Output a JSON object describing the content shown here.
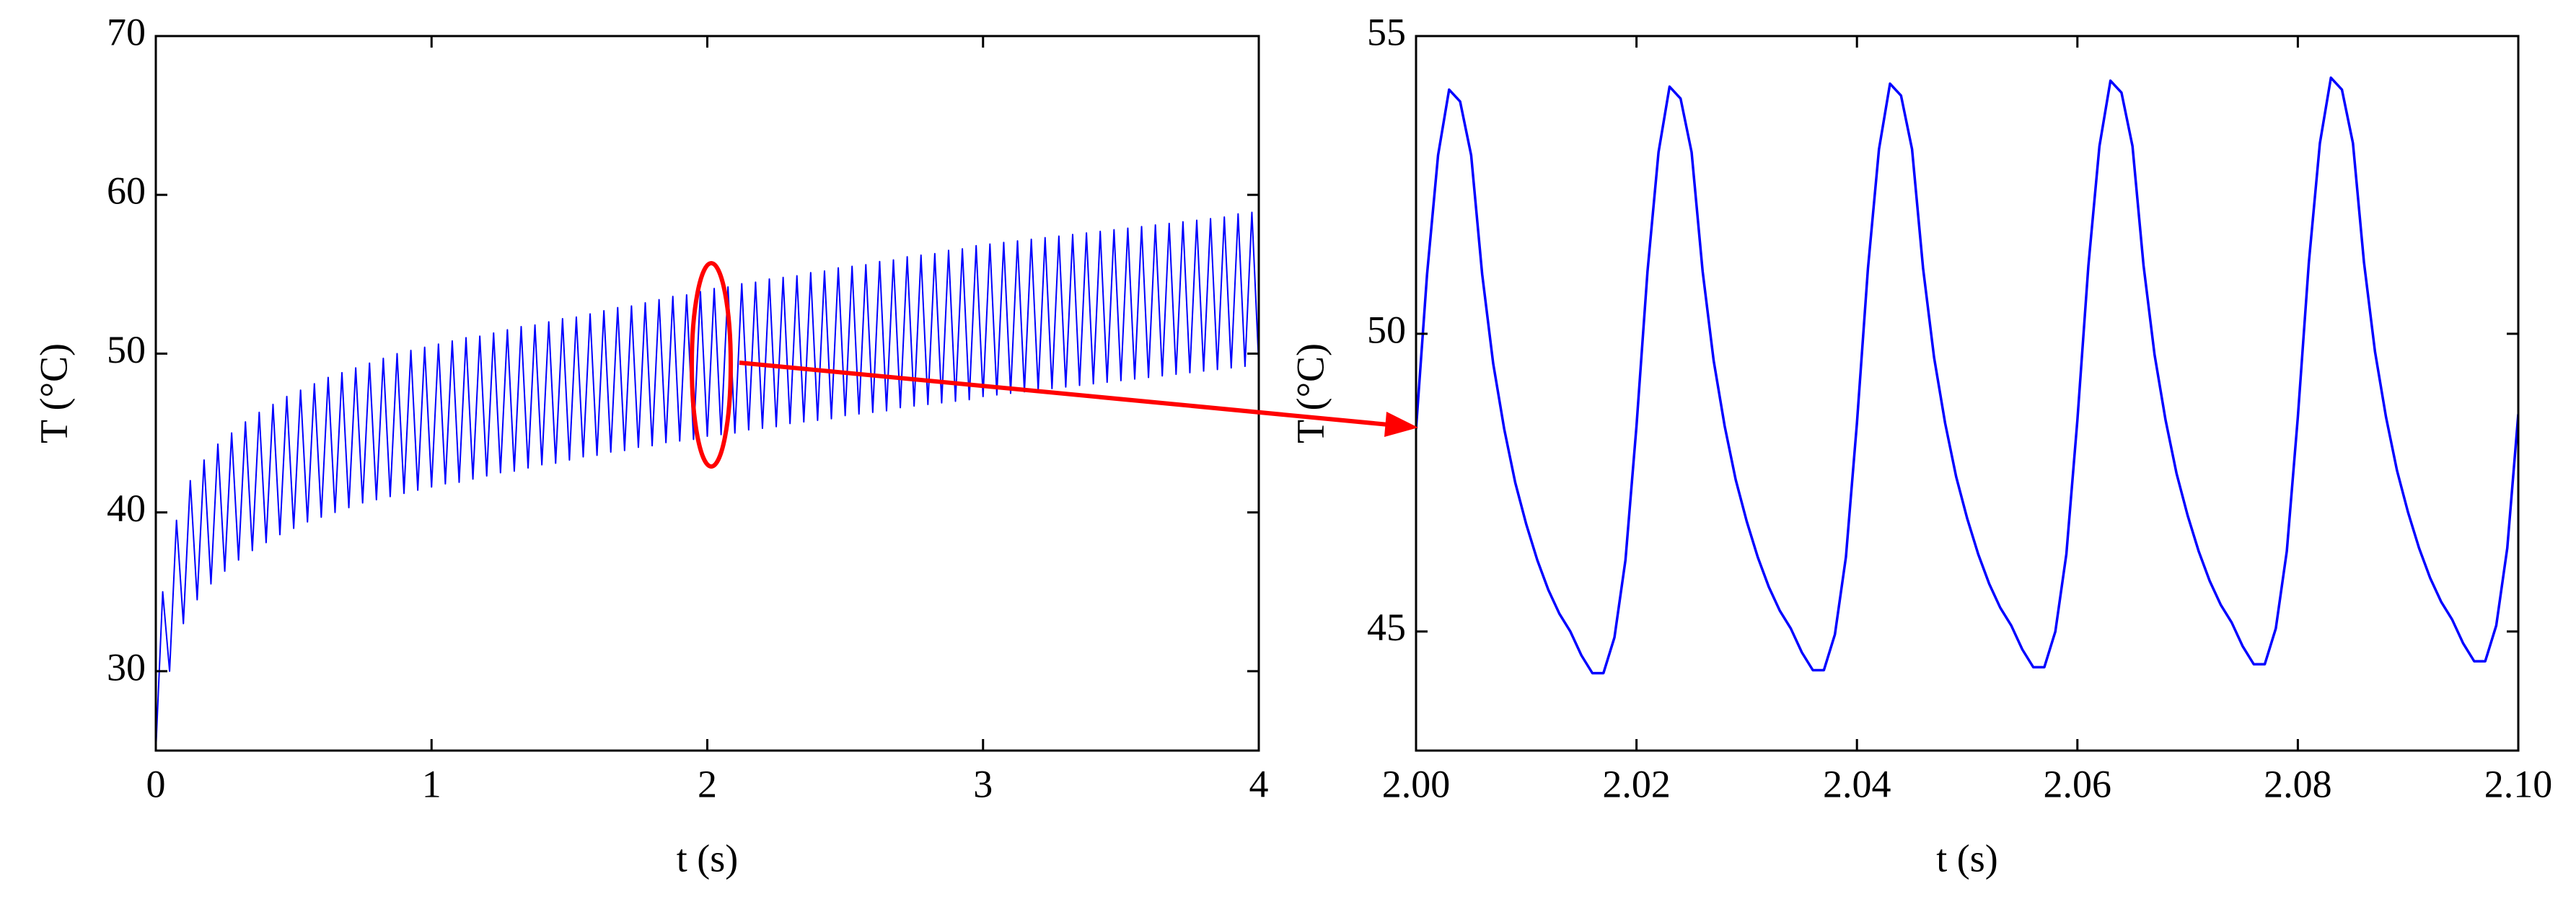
{
  "chart_data": [
    {
      "type": "line",
      "xlabel": "t (s)",
      "ylabel": "T (°C)",
      "color": "#0000ff",
      "xlim": [
        0,
        4
      ],
      "xticks": [
        0,
        1,
        2,
        3,
        4
      ],
      "ylim": [
        25,
        70
      ],
      "yticks": [
        30,
        40,
        50,
        60,
        70
      ],
      "x": [
        0,
        0.025,
        0.05,
        0.075,
        0.1,
        0.125,
        0.15,
        0.175,
        0.2,
        0.225,
        0.25,
        0.275,
        0.3,
        0.325,
        0.35,
        0.375,
        0.4,
        0.425,
        0.45,
        0.475,
        0.5,
        0.525,
        0.55,
        0.575,
        0.6,
        0.625,
        0.65,
        0.675,
        0.7,
        0.725,
        0.75,
        0.775,
        0.8,
        0.825,
        0.85,
        0.875,
        0.9,
        0.925,
        0.95,
        0.975,
        1,
        1.025,
        1.05,
        1.075,
        1.1,
        1.125,
        1.15,
        1.175,
        1.2,
        1.225,
        1.25,
        1.275,
        1.3,
        1.325,
        1.35,
        1.375,
        1.4,
        1.425,
        1.45,
        1.475,
        1.5,
        1.525,
        1.55,
        1.575,
        1.6,
        1.625,
        1.65,
        1.675,
        1.7,
        1.725,
        1.75,
        1.775,
        1.8,
        1.825,
        1.85,
        1.875,
        1.9,
        1.925,
        1.95,
        1.975,
        2,
        2.025,
        2.05,
        2.075,
        2.1,
        2.125,
        2.15,
        2.175,
        2.2,
        2.225,
        2.25,
        2.275,
        2.3,
        2.325,
        2.35,
        2.375,
        2.4,
        2.425,
        2.45,
        2.475,
        2.5,
        2.525,
        2.55,
        2.575,
        2.6,
        2.625,
        2.65,
        2.675,
        2.7,
        2.725,
        2.75,
        2.775,
        2.8,
        2.825,
        2.85,
        2.875,
        2.9,
        2.925,
        2.95,
        2.975,
        3,
        3.025,
        3.05,
        3.075,
        3.1,
        3.125,
        3.15,
        3.175,
        3.2,
        3.225,
        3.25,
        3.275,
        3.3,
        3.325,
        3.35,
        3.375,
        3.4,
        3.425,
        3.45,
        3.475,
        3.5,
        3.525,
        3.55,
        3.575,
        3.6,
        3.625,
        3.65,
        3.675,
        3.7,
        3.725,
        3.75,
        3.775,
        3.8,
        3.825,
        3.85,
        3.875,
        3.9,
        3.925,
        3.95,
        3.975,
        4
      ],
      "values": [
        25,
        35,
        30,
        39.5,
        33,
        42,
        34.5,
        43.3,
        35.5,
        44.3,
        36.3,
        45,
        37,
        45.7,
        37.6,
        46.3,
        38.1,
        46.8,
        38.6,
        47.3,
        39,
        47.7,
        39.4,
        48.1,
        39.7,
        48.5,
        40,
        48.8,
        40.3,
        49.1,
        40.6,
        49.4,
        40.8,
        49.7,
        41,
        50,
        41.2,
        50.2,
        41.4,
        50.4,
        41.6,
        50.6,
        41.8,
        50.8,
        41.9,
        51,
        42.1,
        51.1,
        42.3,
        51.3,
        42.5,
        51.5,
        42.6,
        51.7,
        42.8,
        51.8,
        43,
        52,
        43.1,
        52.2,
        43.3,
        52.3,
        43.5,
        52.5,
        43.6,
        52.7,
        43.8,
        52.9,
        43.9,
        53,
        44.1,
        53.2,
        44.2,
        53.4,
        44.4,
        53.6,
        44.5,
        53.7,
        44.6,
        53.9,
        44.8,
        54.1,
        44.9,
        54.2,
        45,
        54.4,
        45.2,
        54.5,
        45.3,
        54.7,
        45.4,
        54.8,
        45.6,
        54.9,
        45.7,
        55.1,
        45.8,
        55.2,
        45.9,
        55.4,
        46.1,
        55.5,
        46.2,
        55.6,
        46.3,
        55.8,
        46.4,
        55.9,
        46.6,
        56.1,
        46.7,
        56.2,
        46.8,
        56.3,
        46.9,
        56.5,
        47,
        56.6,
        47.1,
        56.8,
        47.3,
        56.9,
        47.4,
        57,
        47.5,
        57.1,
        47.6,
        57.2,
        47.7,
        57.3,
        47.8,
        57.4,
        47.9,
        57.5,
        48,
        57.6,
        48.1,
        57.7,
        48.2,
        57.8,
        48.3,
        57.9,
        48.4,
        58,
        48.5,
        58.1,
        48.6,
        58.2,
        48.7,
        58.3,
        48.8,
        58.4,
        48.9,
        58.5,
        49,
        58.6,
        49.1,
        58.8,
        49.2,
        58.9,
        49.3
      ]
    },
    {
      "type": "line",
      "xlabel": "t (s)",
      "ylabel": "T (°C)",
      "color": "#0000ff",
      "xlim": [
        2,
        2.1
      ],
      "xticks": [
        {
          "value": 2,
          "label": "2.00"
        },
        {
          "value": 2.02,
          "label": "2.02"
        },
        {
          "value": 2.04,
          "label": "2.04"
        },
        {
          "value": 2.06,
          "label": "2.06"
        },
        {
          "value": 2.08,
          "label": "2.08"
        },
        {
          "value": 2.1,
          "label": "2.10"
        }
      ],
      "ylim": [
        43,
        55
      ],
      "yticks": [
        45,
        50,
        55
      ],
      "x": [
        2,
        2.001,
        2.002,
        2.003,
        2.004,
        2.005,
        2.006,
        2.007,
        2.008,
        2.009,
        2.01,
        2.011,
        2.012,
        2.013,
        2.014,
        2.015,
        2.016,
        2.017,
        2.018,
        2.019,
        2.02,
        2.021,
        2.022,
        2.023,
        2.024,
        2.025,
        2.026,
        2.027,
        2.028,
        2.029,
        2.03,
        2.031,
        2.032,
        2.033,
        2.034,
        2.035,
        2.036,
        2.037,
        2.038,
        2.039,
        2.04,
        2.041,
        2.042,
        2.043,
        2.044,
        2.045,
        2.046,
        2.047,
        2.048,
        2.049,
        2.05,
        2.051,
        2.052,
        2.053,
        2.054,
        2.055,
        2.056,
        2.057,
        2.058,
        2.059,
        2.06,
        2.061,
        2.062,
        2.063,
        2.064,
        2.065,
        2.066,
        2.067,
        2.068,
        2.069,
        2.07,
        2.071,
        2.072,
        2.073,
        2.074,
        2.075,
        2.076,
        2.077,
        2.078,
        2.079,
        2.08,
        2.081,
        2.082,
        2.083,
        2.084,
        2.085,
        2.086,
        2.087,
        2.088,
        2.089,
        2.09,
        2.091,
        2.092,
        2.093,
        2.094,
        2.095,
        2.096,
        2.097,
        2.098,
        2.099,
        2.1
      ],
      "values": [
        48.4,
        51,
        53,
        54.1,
        53.9,
        53,
        51,
        49.5,
        48.4,
        47.5,
        46.8,
        46.2,
        45.7,
        45.3,
        45,
        44.6,
        44.3,
        44.3,
        44.9,
        46.2,
        48.45,
        51.05,
        53.05,
        54.15,
        53.95,
        53.05,
        51.05,
        49.55,
        48.45,
        47.55,
        46.85,
        46.25,
        45.75,
        45.35,
        45.05,
        44.65,
        44.35,
        44.35,
        44.95,
        46.25,
        48.5,
        51.1,
        53.1,
        54.2,
        54,
        53.1,
        51.1,
        49.6,
        48.5,
        47.6,
        46.9,
        46.3,
        45.8,
        45.4,
        45.1,
        44.7,
        44.4,
        44.4,
        45,
        46.3,
        48.55,
        51.15,
        53.15,
        54.25,
        54.05,
        53.15,
        51.15,
        49.65,
        48.55,
        47.65,
        46.95,
        46.35,
        45.85,
        45.45,
        45.15,
        44.75,
        44.45,
        44.45,
        45.05,
        46.35,
        48.6,
        51.2,
        53.2,
        54.3,
        54.1,
        53.2,
        51.2,
        49.7,
        48.6,
        47.7,
        47,
        46.4,
        45.9,
        45.5,
        45.2,
        44.8,
        44.5,
        44.5,
        45.1,
        46.4,
        48.65
      ]
    }
  ]
}
